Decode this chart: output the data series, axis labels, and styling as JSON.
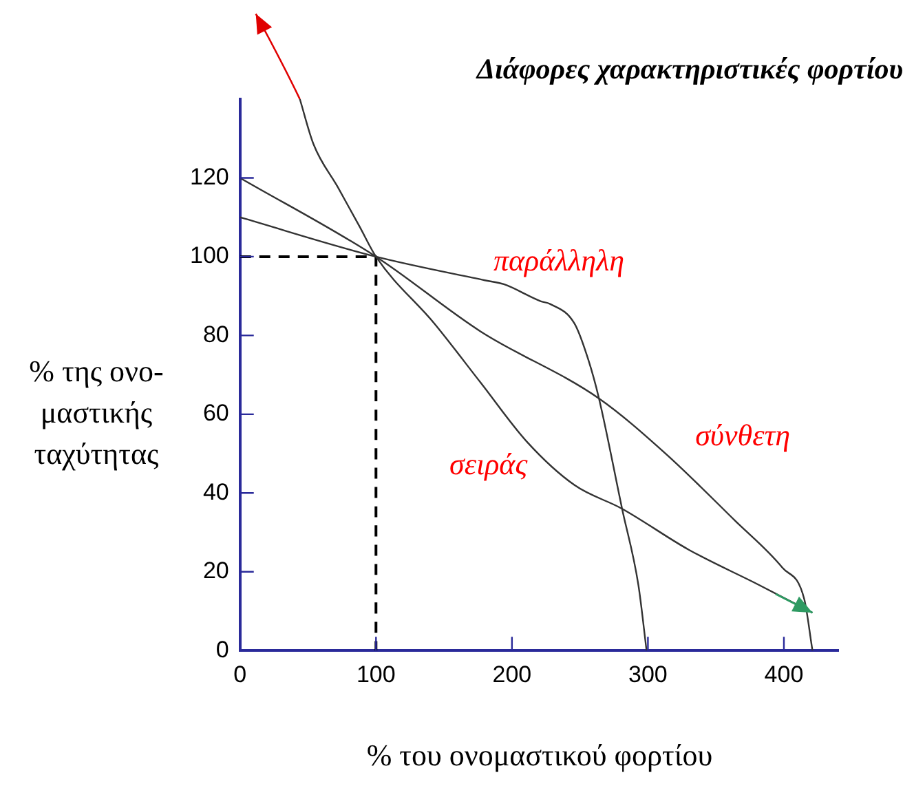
{
  "chart_data": {
    "type": "line",
    "title": "Διάφορες χαρακτηριστικές φορτίου",
    "xlabel": "% του ονομαστικού φορτίου",
    "ylabel": "% της ονο-\nμαστικής\nταχύτητας",
    "xlim": [
      0,
      440
    ],
    "ylim": [
      0,
      140
    ],
    "xticks": [
      0,
      100,
      200,
      300,
      400
    ],
    "yticks": [
      0,
      20,
      40,
      60,
      80,
      100,
      120
    ],
    "grid": false,
    "legend": false,
    "marker": "none",
    "series": [
      {
        "name": "σειράς",
        "color": "#333333",
        "x": [
          44,
          54,
          72,
          88,
          100,
          143,
          177,
          211,
          246,
          281,
          330,
          382,
          421
        ],
        "values": [
          140,
          128.6,
          117.6,
          107.6,
          100,
          83,
          68,
          53,
          42,
          36,
          25.6,
          16.6,
          9.6
        ]
      },
      {
        "name": "παράλληλη",
        "color": "#333333",
        "x": [
          0,
          100,
          180,
          194,
          221,
          228,
          246,
          256,
          264,
          281,
          293,
          299
        ],
        "values": [
          110,
          100,
          94,
          93,
          88.7,
          88,
          83,
          74,
          64,
          36,
          16.6,
          0
        ]
      },
      {
        "name": "σύνθετη",
        "color": "#333333",
        "x": [
          0,
          100,
          177,
          264,
          313,
          364,
          399,
          415,
          421
        ],
        "values": [
          120,
          100,
          81,
          64,
          50,
          33,
          21,
          13,
          0
        ]
      },
      {
        "color": "#000000",
        "line_style": "dashed",
        "x": [
          0,
          100,
          100
        ],
        "values": [
          100,
          100,
          0
        ]
      }
    ]
  }
}
